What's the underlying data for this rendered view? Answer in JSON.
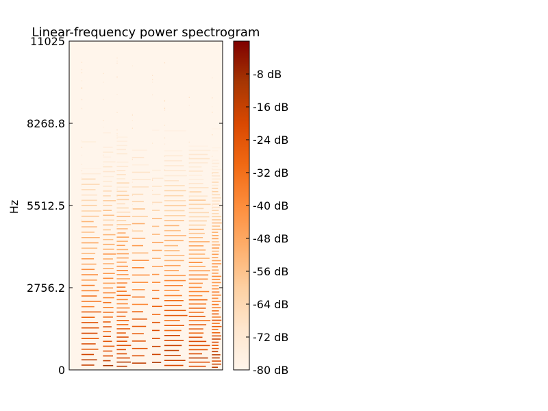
{
  "chart_data": {
    "type": "heatmap",
    "title": "Linear-frequency power spectrogram",
    "xlabel": "",
    "ylabel": "Hz",
    "y_range": [
      0,
      11025
    ],
    "y_ticks": [
      0,
      2756.2,
      5512.5,
      8268.8,
      11025
    ],
    "y_tick_labels": [
      "0",
      "2756.2",
      "5512.5",
      "8268.8",
      "11025"
    ],
    "x_ticks_shown": false,
    "colormap": "Reds",
    "colormap_stops": [
      "#fff5eb",
      "#fee6ce",
      "#fdd0a2",
      "#fdae6b",
      "#fd8d3c",
      "#f16913",
      "#d94801",
      "#a63603",
      "#7f0000"
    ],
    "colorbar": {
      "range": [
        -80,
        0
      ],
      "ticks": [
        -80,
        -72,
        -64,
        -56,
        -48,
        -40,
        -32,
        -24,
        -16,
        -8
      ],
      "tick_labels": [
        "-80 dB",
        "-72 dB",
        "-64 dB",
        "-56 dB",
        "-48 dB",
        "-40 dB",
        "-32 dB",
        "-24 dB",
        "-16 dB",
        "-8 dB"
      ]
    },
    "note_onsets": [
      0.08,
      0.22,
      0.31,
      0.41,
      0.54,
      0.62,
      0.78,
      0.93
    ]
  }
}
